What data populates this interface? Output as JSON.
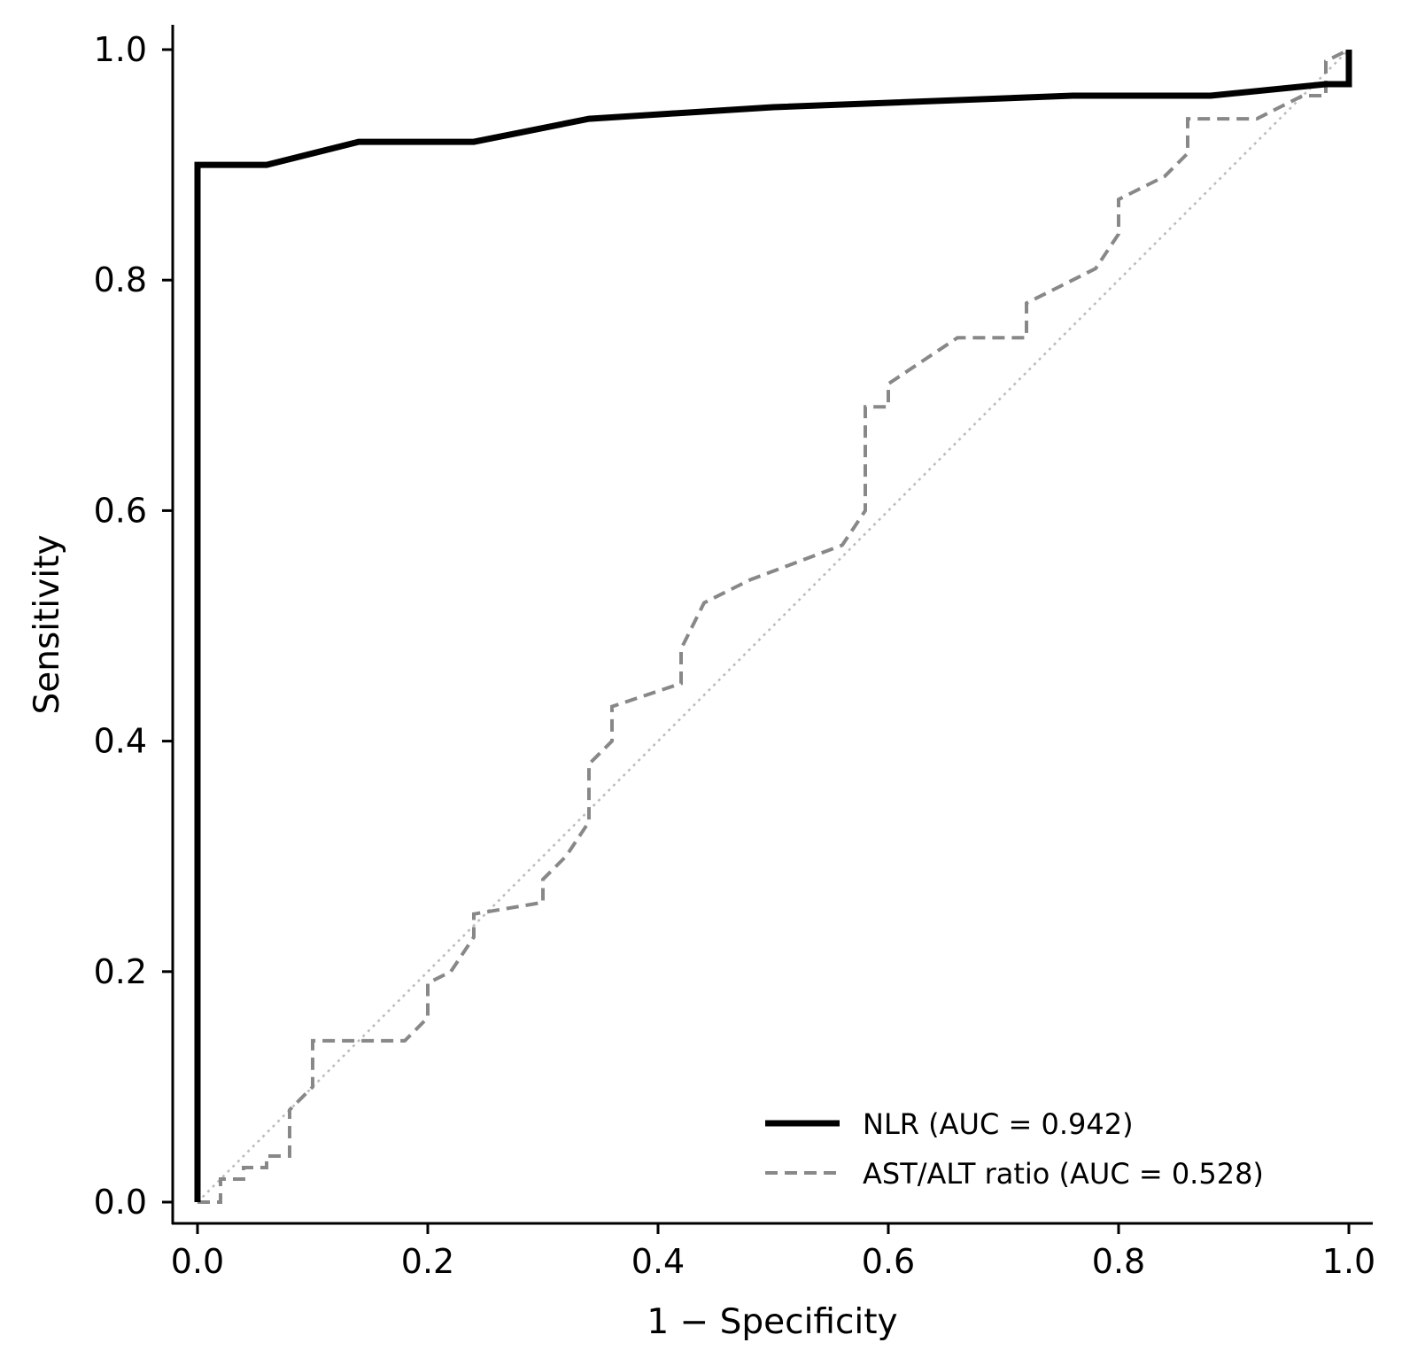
{
  "chart_data": {
    "type": "line",
    "title": "",
    "xlabel": "1 − Specificity",
    "ylabel": "Sensitivity",
    "xlim": [
      -0.02,
      1.02
    ],
    "ylim": [
      -0.02,
      1.02
    ],
    "xticks": [
      0.0,
      0.2,
      0.4,
      0.6,
      0.8,
      1.0
    ],
    "xtick_labels": [
      "0.0",
      "0.2",
      "0.4",
      "0.6",
      "0.8",
      "1.0"
    ],
    "yticks": [
      0.0,
      0.2,
      0.4,
      0.6,
      0.8,
      1.0
    ],
    "ytick_labels": [
      "0.0",
      "0.2",
      "0.4",
      "0.6",
      "0.8",
      "1.0"
    ],
    "grid": false,
    "legend_position": "bottom-right",
    "series": [
      {
        "name": "NLR (AUC = 0.942)",
        "color": "#000000",
        "style": "solid",
        "x": [
          0.0,
          0.0,
          0.06,
          0.14,
          0.24,
          0.34,
          0.5,
          0.76,
          0.88,
          0.98,
          1.0,
          1.0
        ],
        "y": [
          0.0,
          0.9,
          0.9,
          0.92,
          0.92,
          0.94,
          0.95,
          0.96,
          0.96,
          0.97,
          0.97,
          1.0
        ]
      },
      {
        "name": "AST/ALT ratio (AUC = 0.528)",
        "color": "#888888",
        "style": "dashed",
        "x": [
          0.0,
          0.02,
          0.02,
          0.04,
          0.04,
          0.06,
          0.06,
          0.08,
          0.08,
          0.1,
          0.1,
          0.14,
          0.18,
          0.2,
          0.2,
          0.22,
          0.24,
          0.24,
          0.3,
          0.3,
          0.32,
          0.34,
          0.34,
          0.36,
          0.36,
          0.42,
          0.42,
          0.44,
          0.48,
          0.56,
          0.58,
          0.58,
          0.6,
          0.6,
          0.66,
          0.72,
          0.72,
          0.76,
          0.78,
          0.8,
          0.8,
          0.84,
          0.86,
          0.86,
          0.92,
          0.94,
          0.96,
          0.98,
          0.98,
          1.0
        ],
        "y": [
          0.0,
          0.0,
          0.02,
          0.02,
          0.03,
          0.03,
          0.04,
          0.04,
          0.08,
          0.1,
          0.14,
          0.14,
          0.14,
          0.16,
          0.19,
          0.2,
          0.23,
          0.25,
          0.26,
          0.28,
          0.3,
          0.33,
          0.38,
          0.4,
          0.43,
          0.45,
          0.48,
          0.52,
          0.54,
          0.57,
          0.6,
          0.69,
          0.69,
          0.71,
          0.75,
          0.75,
          0.78,
          0.8,
          0.81,
          0.84,
          0.87,
          0.89,
          0.91,
          0.94,
          0.94,
          0.95,
          0.96,
          0.96,
          0.99,
          1.0
        ]
      },
      {
        "name": "",
        "color": "#bbbbbb",
        "style": "dotted",
        "x": [
          0.0,
          1.0
        ],
        "y": [
          0.0,
          1.0
        ]
      }
    ]
  }
}
